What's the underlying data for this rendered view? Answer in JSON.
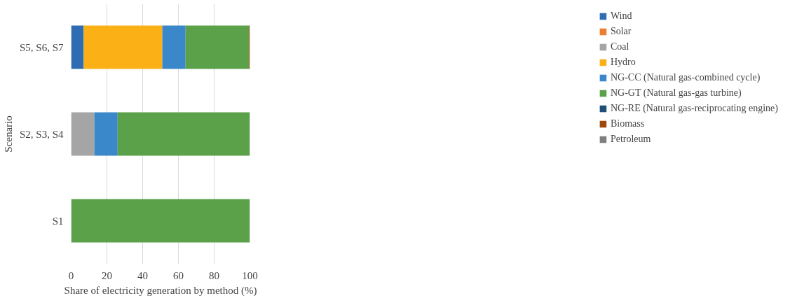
{
  "chart_data": {
    "type": "bar",
    "orientation": "horizontal",
    "stacked": true,
    "xlabel": "Share of electricity generation by method (%)",
    "ylabel": "Scenario",
    "categories": [
      "S5, S6, S7",
      "S2, S3, S4",
      "S1"
    ],
    "series": [
      {
        "name": "Wind",
        "color": "#2e6db4",
        "values": [
          7,
          0,
          0
        ]
      },
      {
        "name": "Solar",
        "color": "#ed7d31",
        "values": [
          0,
          0,
          0
        ]
      },
      {
        "name": "Coal",
        "color": "#a5a5a5",
        "values": [
          0,
          13,
          0
        ]
      },
      {
        "name": "Hydro",
        "color": "#fbb116",
        "values": [
          44,
          0,
          0
        ]
      },
      {
        "name": "NG-CC (Natural gas-combined cycle)",
        "color": "#3a87c9",
        "values": [
          13,
          13,
          0
        ]
      },
      {
        "name": "NG-GT (Natural gas-gas turbine)",
        "color": "#5aa14a",
        "values": [
          35.5,
          74,
          100
        ]
      },
      {
        "name": "NG-RE (Natural gas-reciprocating engine)",
        "color": "#1f4e79",
        "values": [
          0,
          0,
          0
        ]
      },
      {
        "name": "Biomass",
        "color": "#9e480e",
        "values": [
          0.5,
          0,
          0
        ]
      },
      {
        "name": "Petroleum",
        "color": "#7f7f7f",
        "values": [
          0,
          0,
          0
        ]
      }
    ],
    "xlim": [
      0,
      100
    ],
    "xticks": [
      0,
      20,
      40,
      60,
      80,
      100
    ],
    "grid": "x",
    "legend": "right"
  }
}
